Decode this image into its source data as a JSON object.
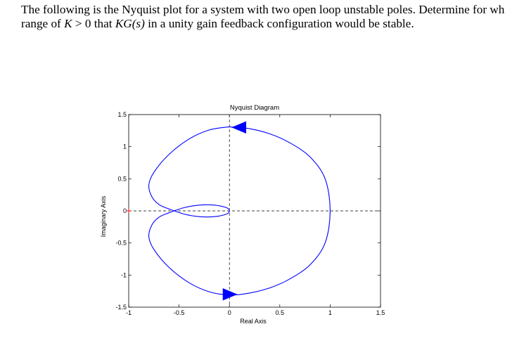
{
  "question": {
    "line1": "The following is the Nyquist plot for a system with two open loop unstable poles. Determine for what",
    "line2_prefix": "range of ",
    "k_symbol": "K",
    "gt_zero": " > 0 that ",
    "kg_expr": "KG(s)",
    "line2_suffix": " in a unity gain feedback configuration would be stable."
  },
  "chart_data": {
    "type": "line",
    "title": "Nyquist Diagram",
    "xlabel": "Real Axis",
    "ylabel": "Imaginary Axis",
    "xlim": [
      -1,
      1.5
    ],
    "ylim": [
      -1.5,
      1.5
    ],
    "x_ticks": [
      -1,
      -0.5,
      0,
      0.5,
      1,
      1.5
    ],
    "x_tick_labels": [
      "-1",
      "-0.5",
      "0",
      "0.5",
      "1",
      "1.5"
    ],
    "y_ticks": [
      -1.5,
      -1,
      -0.5,
      0,
      0.5,
      1,
      1.5
    ],
    "y_tick_labels": [
      "-1.5",
      "-1",
      "-0.5",
      "0",
      "0.5",
      "1",
      "1.5"
    ],
    "grid": false,
    "reference_lines": [
      {
        "orientation": "horizontal",
        "value": 0,
        "style": "dashed"
      },
      {
        "orientation": "vertical",
        "value": 0,
        "style": "dashed"
      }
    ],
    "critical_point": {
      "x": -1,
      "y": 0,
      "marker": "+",
      "color": "#ff0000"
    },
    "series": [
      {
        "color": "#0000ff",
        "x": [
          0.0,
          0.2,
          0.4,
          0.6,
          0.8,
          0.95,
          1.0,
          0.95,
          0.8,
          0.6,
          0.4,
          0.2,
          0.0,
          -0.2,
          -0.4,
          -0.6,
          -0.75,
          -0.8,
          -0.77,
          -0.7,
          -0.6,
          -0.45,
          -0.3,
          -0.15,
          -0.03,
          0.0,
          -0.03,
          -0.15,
          -0.3,
          -0.45,
          -0.6,
          -0.7,
          -0.77,
          -0.8,
          -0.75,
          -0.6,
          -0.4,
          -0.2,
          0.0
        ],
        "y": [
          1.31,
          1.28,
          1.2,
          1.06,
          0.84,
          0.5,
          0.0,
          -0.5,
          -0.84,
          -1.06,
          -1.2,
          -1.28,
          -1.31,
          -1.26,
          -1.12,
          -0.88,
          -0.6,
          -0.4,
          -0.22,
          -0.1,
          -0.03,
          0.05,
          0.09,
          0.09,
          0.05,
          0.0,
          -0.05,
          -0.09,
          -0.09,
          -0.05,
          0.03,
          0.1,
          0.22,
          0.4,
          0.6,
          0.88,
          1.12,
          1.26,
          1.31
        ]
      }
    ],
    "arrows": [
      {
        "x": 0.1,
        "y": 1.3,
        "direction": "left"
      },
      {
        "x": 0.0,
        "y": -1.3,
        "direction": "right"
      }
    ]
  }
}
